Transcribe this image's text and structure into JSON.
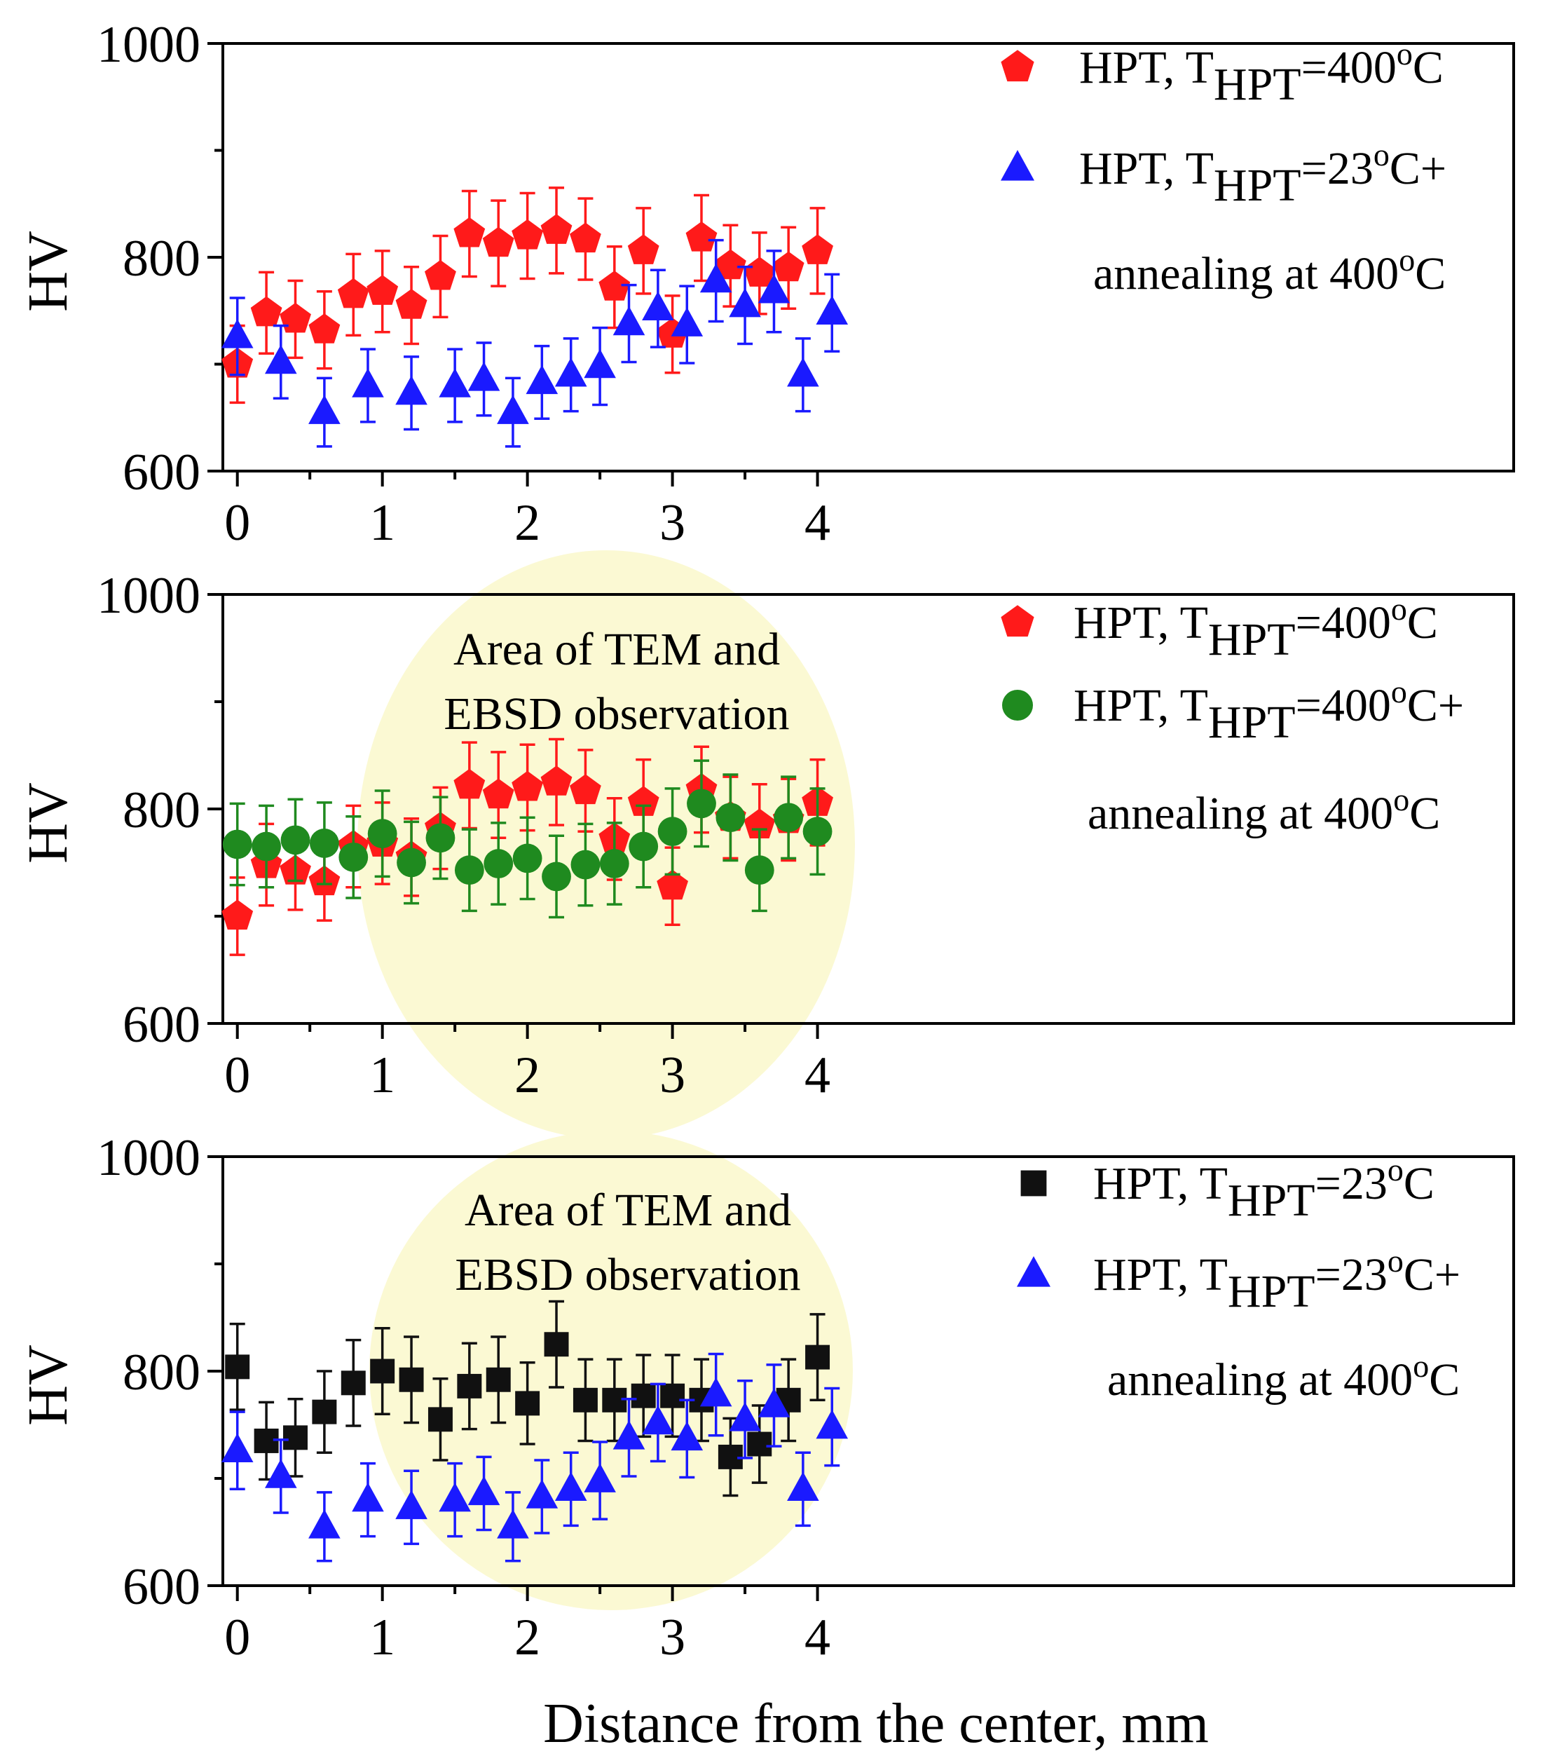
{
  "page": {
    "background": "#ffffff"
  },
  "colors": {
    "red": "#ff1a1a",
    "blue": "#1a1aff",
    "green": "#1f8a1f",
    "black": "#111111",
    "highlight": "#fbf9d3"
  },
  "chart_data": [
    {
      "type": "scatter",
      "ylabel": "HV",
      "xlabel": "",
      "xlim": [
        -0.1,
        8.8
      ],
      "ylim": [
        600,
        1000
      ],
      "xticks": [
        "0",
        "1",
        "2",
        "3",
        "4"
      ],
      "yticks": [
        "600",
        "800",
        "1000"
      ],
      "legend_position": "top-right",
      "legend": [
        {
          "text": "HPT, T",
          "sub": "HPT",
          "rest": "=400",
          "sup": "o",
          "end": "C"
        },
        {
          "text": "HPT, T",
          "sub": "HPT",
          "rest": "=23",
          "sup": "o",
          "end": "C+"
        },
        {
          "text": "annealing at 400",
          "sup": "o",
          "end": "C"
        }
      ],
      "series": [
        {
          "name": "HPT, T_HPT=400°C",
          "marker": "pentagon",
          "color": "#ff1a1a",
          "x": [
            0,
            0.2,
            0.4,
            0.6,
            0.8,
            1.0,
            1.2,
            1.4,
            1.6,
            1.8,
            2.0,
            2.2,
            2.4,
            2.6,
            2.8,
            3.0,
            3.2,
            3.4,
            3.6,
            3.8,
            4.0
          ],
          "y": [
            700,
            748,
            742,
            732,
            765,
            768,
            755,
            782,
            822,
            813,
            820,
            825,
            817,
            772,
            806,
            728,
            818,
            792,
            785,
            790,
            806
          ],
          "err": [
            36,
            38,
            36,
            36,
            38,
            38,
            36,
            38,
            40,
            40,
            40,
            40,
            38,
            38,
            40,
            36,
            40,
            38,
            38,
            38,
            40
          ]
        },
        {
          "name": "HPT, T_HPT=23°C+ annealing at 400°C",
          "marker": "triangle",
          "color": "#1a1aff",
          "x": [
            0,
            0.3,
            0.6,
            0.9,
            1.2,
            1.5,
            1.7,
            1.9,
            2.1,
            2.3,
            2.5,
            2.7,
            2.9,
            3.1,
            3.3,
            3.5,
            3.7,
            3.9,
            4.1
          ],
          "y": [
            726,
            702,
            655,
            680,
            673,
            680,
            686,
            655,
            683,
            690,
            698,
            738,
            752,
            737,
            778,
            755,
            768,
            690,
            748
          ],
          "err": [
            36,
            34,
            32,
            34,
            34,
            34,
            34,
            32,
            34,
            34,
            36,
            36,
            36,
            36,
            38,
            36,
            38,
            34,
            36
          ]
        }
      ]
    },
    {
      "type": "scatter",
      "ylabel": "HV",
      "xlabel": "",
      "xlim": [
        -0.1,
        8.8
      ],
      "ylim": [
        600,
        1000
      ],
      "xticks": [
        "0",
        "1",
        "2",
        "3",
        "4"
      ],
      "yticks": [
        "600",
        "800",
        "1000"
      ],
      "legend_position": "top-right",
      "annotation": [
        "Area of TEM and",
        "EBSD observation"
      ],
      "legend": [
        {
          "text": "HPT, T",
          "sub": "HPT",
          "rest": "=400",
          "sup": "o",
          "end": "C"
        },
        {
          "text": "HPT, T",
          "sub": "HPT",
          "rest": "=400",
          "sup": "o",
          "end": "C+"
        },
        {
          "text": "annealing at 400",
          "sup": "o",
          "end": "C"
        }
      ],
      "series": [
        {
          "name": "HPT, T_HPT=400°C",
          "marker": "pentagon",
          "color": "#ff1a1a",
          "x": [
            0,
            0.2,
            0.4,
            0.6,
            0.8,
            1.0,
            1.2,
            1.4,
            1.6,
            1.8,
            2.0,
            2.2,
            2.4,
            2.6,
            2.8,
            3.0,
            3.2,
            3.4,
            3.6,
            3.8,
            4.0
          ],
          "y": [
            700,
            748,
            742,
            732,
            765,
            768,
            755,
            782,
            822,
            813,
            820,
            825,
            817,
            772,
            806,
            728,
            818,
            792,
            785,
            790,
            806
          ],
          "err": [
            36,
            38,
            36,
            36,
            38,
            38,
            36,
            38,
            40,
            40,
            40,
            40,
            38,
            38,
            40,
            36,
            40,
            38,
            38,
            38,
            40
          ]
        },
        {
          "name": "HPT, T_HPT=400°C+ annealing at 400°C",
          "marker": "circle",
          "color": "#1f8a1f",
          "x": [
            0,
            0.2,
            0.4,
            0.6,
            0.8,
            1.0,
            1.2,
            1.4,
            1.6,
            1.8,
            2.0,
            2.2,
            2.4,
            2.6,
            2.8,
            3.0,
            3.2,
            3.4,
            3.6,
            3.8,
            4.0
          ],
          "y": [
            767,
            765,
            771,
            768,
            755,
            777,
            750,
            773,
            743,
            749,
            754,
            737,
            748,
            749,
            765,
            779,
            805,
            792,
            743,
            792,
            779
          ],
          "err": [
            38,
            38,
            38,
            38,
            38,
            40,
            38,
            38,
            38,
            38,
            38,
            38,
            38,
            38,
            38,
            40,
            40,
            40,
            38,
            38,
            40
          ]
        }
      ]
    },
    {
      "type": "scatter",
      "ylabel": "HV",
      "xlabel": "Distance from the center, mm",
      "xlim": [
        -0.1,
        8.8
      ],
      "ylim": [
        600,
        1000
      ],
      "xticks": [
        "0",
        "1",
        "2",
        "3",
        "4"
      ],
      "yticks": [
        "600",
        "800",
        "1000"
      ],
      "legend_position": "top-right",
      "annotation": [
        "Area of TEM and",
        "EBSD observation"
      ],
      "legend": [
        {
          "text": "HPT, T",
          "sub": "HPT",
          "rest": "=23",
          "sup": "o",
          "end": "C"
        },
        {
          "text": "HPT, T",
          "sub": "HPT",
          "rest": "=23",
          "sup": "o",
          "end": "C+"
        },
        {
          "text": "annealing at 400",
          "sup": "o",
          "end": "C"
        }
      ],
      "series": [
        {
          "name": "HPT, T_HPT=23°C",
          "marker": "square",
          "color": "#111111",
          "x": [
            0,
            0.2,
            0.4,
            0.6,
            0.8,
            1.0,
            1.2,
            1.4,
            1.6,
            1.8,
            2.0,
            2.2,
            2.4,
            2.6,
            2.8,
            3.0,
            3.2,
            3.4,
            3.6,
            3.8,
            4.0
          ],
          "y": [
            804,
            735,
            738,
            762,
            789,
            800,
            792,
            755,
            786,
            792,
            770,
            825,
            773,
            773,
            777,
            777,
            773,
            720,
            732,
            773,
            813
          ],
          "err": [
            40,
            36,
            36,
            38,
            40,
            40,
            40,
            38,
            40,
            40,
            38,
            40,
            38,
            38,
            38,
            38,
            38,
            36,
            36,
            38,
            40
          ]
        },
        {
          "name": "HPT, T_HPT=23°C+ annealing at 400°C",
          "marker": "triangle",
          "color": "#1a1aff",
          "x": [
            0,
            0.3,
            0.6,
            0.9,
            1.2,
            1.5,
            1.7,
            1.9,
            2.1,
            2.3,
            2.5,
            2.7,
            2.9,
            3.1,
            3.3,
            3.5,
            3.7,
            3.9,
            4.1
          ],
          "y": [
            726,
            702,
            655,
            680,
            673,
            680,
            686,
            655,
            683,
            690,
            698,
            738,
            752,
            737,
            778,
            755,
            768,
            690,
            748
          ],
          "err": [
            36,
            34,
            32,
            34,
            34,
            34,
            34,
            32,
            34,
            34,
            36,
            36,
            36,
            36,
            38,
            36,
            38,
            34,
            36
          ]
        }
      ]
    }
  ]
}
